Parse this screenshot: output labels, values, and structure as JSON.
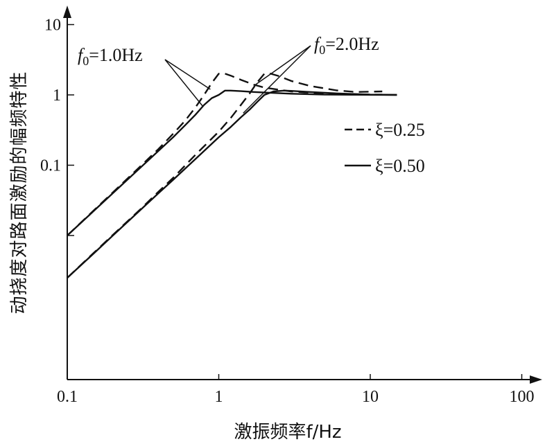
{
  "chart_data": {
    "type": "line",
    "xscale": "log",
    "yscale": "log",
    "xlabel": "激振频率f/Hz",
    "ylabel": "动挠度对路面激励的幅频特性",
    "xlim": [
      0.1,
      100
    ],
    "ylim": [
      0.001,
      20
    ],
    "x_ticks": [
      {
        "value": 0.1,
        "label": "0.1"
      },
      {
        "value": 1,
        "label": "1"
      },
      {
        "value": 10,
        "label": "10"
      },
      {
        "value": 100,
        "label": "100"
      }
    ],
    "y_ticks": [
      {
        "value": 0.01,
        "label": ""
      },
      {
        "value": 0.1,
        "label": "0.1"
      },
      {
        "value": 1,
        "label": "1"
      },
      {
        "value": 10,
        "label": "10"
      }
    ],
    "legend": {
      "position": "right",
      "entries": [
        {
          "label": "ξ=0.25",
          "style": "dashed"
        },
        {
          "label": "ξ=0.50",
          "style": "solid"
        }
      ]
    },
    "annotations": [
      {
        "text": "f0=1.0Hz",
        "points_to": [
          0.84,
          1.12
        ]
      },
      {
        "text": "f0=2.0Hz",
        "points_to": [
          1.7,
          1.05
        ]
      }
    ],
    "series": [
      {
        "f0": 1.0,
        "damping": 0.25,
        "style": "dashed",
        "x": [
          0.1,
          0.15,
          0.2,
          0.3,
          0.4,
          0.5,
          0.6,
          0.7,
          0.8,
          0.9,
          1.0,
          1.1,
          1.2,
          1.4,
          1.7,
          2.0,
          3.0,
          5.0,
          8.0,
          12.0
        ],
        "y": [
          0.01,
          0.0229,
          0.041,
          0.094,
          0.17,
          0.28,
          0.43,
          0.66,
          1.0,
          1.48,
          2.0,
          2.0,
          1.88,
          1.64,
          1.4,
          1.27,
          1.12,
          1.04,
          1.015,
          1.01
        ]
      },
      {
        "f0": 1.0,
        "damping": 0.5,
        "style": "solid",
        "x": [
          0.1,
          0.15,
          0.2,
          0.3,
          0.4,
          0.5,
          0.6,
          0.7,
          0.8,
          0.9,
          1.0,
          1.1,
          1.2,
          1.4,
          1.7,
          2.0,
          3.0,
          5.0,
          8.0,
          15.0
        ],
        "y": [
          0.01,
          0.0225,
          0.04,
          0.09,
          0.16,
          0.25,
          0.37,
          0.52,
          0.72,
          0.9,
          1.0,
          1.15,
          1.15,
          1.13,
          1.1,
          1.08,
          1.04,
          1.01,
          1.005,
          1.0
        ]
      },
      {
        "f0": 2.0,
        "damping": 0.25,
        "style": "dashed",
        "x": [
          0.1,
          0.15,
          0.2,
          0.3,
          0.4,
          0.5,
          0.7,
          1.0,
          1.2,
          1.4,
          1.6,
          1.8,
          2.0,
          2.2,
          2.5,
          3.0,
          4.0,
          6.0,
          8.0,
          12.0
        ],
        "y": [
          0.0025,
          0.0057,
          0.0102,
          0.023,
          0.042,
          0.066,
          0.14,
          0.3,
          0.47,
          0.72,
          1.05,
          1.52,
          2.0,
          2.0,
          1.85,
          1.58,
          1.34,
          1.16,
          1.1,
          1.12
        ]
      },
      {
        "f0": 2.0,
        "damping": 0.5,
        "style": "solid",
        "x": [
          0.1,
          0.15,
          0.2,
          0.3,
          0.4,
          0.5,
          0.7,
          1.0,
          1.2,
          1.4,
          1.6,
          1.8,
          2.0,
          2.3,
          2.7,
          3.0,
          4.0,
          6.0,
          10.0,
          15.0
        ],
        "y": [
          0.0025,
          0.0056,
          0.01,
          0.0225,
          0.04,
          0.062,
          0.122,
          0.25,
          0.35,
          0.48,
          0.62,
          0.8,
          1.0,
          1.12,
          1.15,
          1.14,
          1.1,
          1.05,
          1.01,
          1.0
        ]
      }
    ]
  }
}
